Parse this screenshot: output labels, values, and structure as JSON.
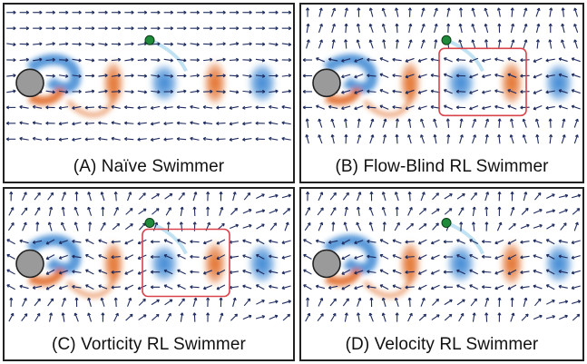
{
  "figure": {
    "panels": [
      {
        "id": "A",
        "caption": "(A) Naïve Swimmer",
        "flow_style": "uniform",
        "highlight_box": false
      },
      {
        "id": "B",
        "caption": "(B) Flow-Blind RL Swimmer",
        "flow_style": "upward",
        "highlight_box": true
      },
      {
        "id": "C",
        "caption": "(C) Vorticity RL Swimmer",
        "flow_style": "mixed",
        "highlight_box": true
      },
      {
        "id": "D",
        "caption": "(D) Velocity RL Swimmer",
        "flow_style": "mixed",
        "highlight_box": false
      }
    ],
    "colors": {
      "frame": "#222222",
      "arrow": "#1e2b5e",
      "vortex_blue": "#2f7fd0",
      "vortex_red": "#e0651c",
      "cylinder_fill": "#9a9a9a",
      "swimmer": "#1f8a3a",
      "highlight_box": "#d9434a"
    }
  }
}
